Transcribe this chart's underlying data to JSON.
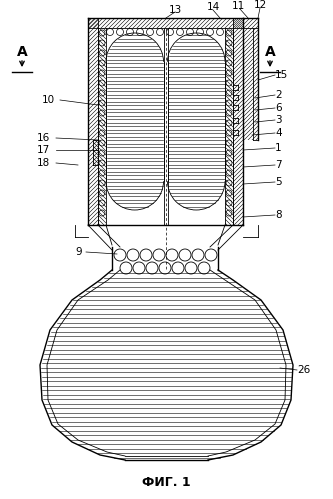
{
  "title": "ФИГ. 1",
  "bg": "#ffffff",
  "black": "#000000",
  "fig_w": 3.33,
  "fig_h": 4.99,
  "dpi": 100
}
